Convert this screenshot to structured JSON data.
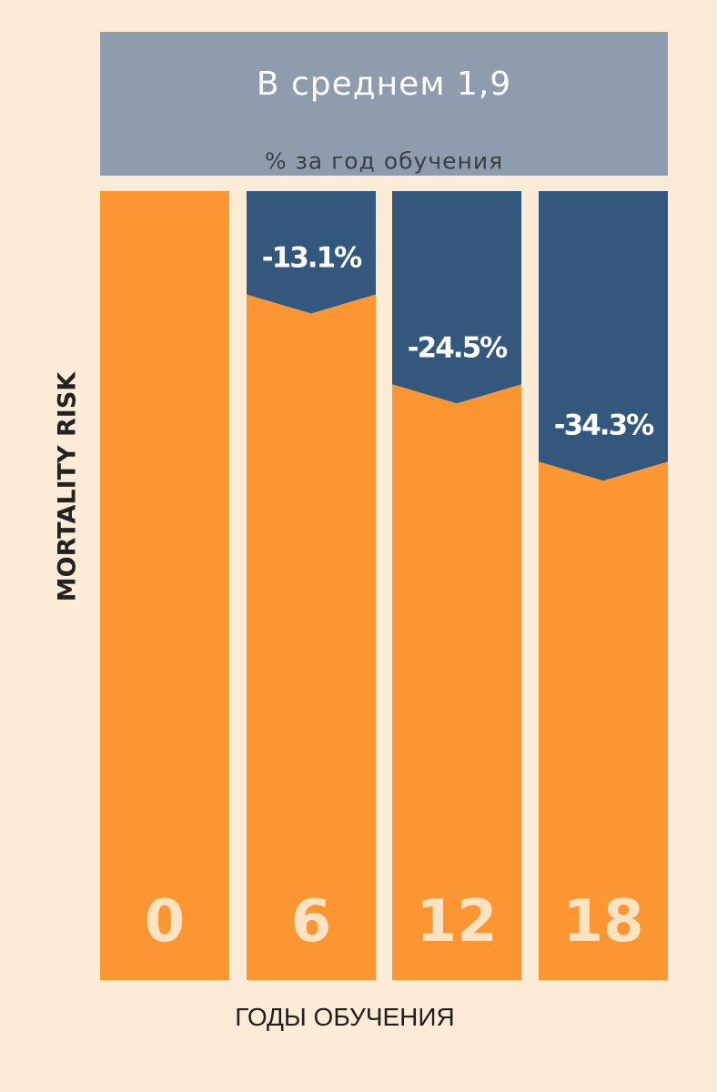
{
  "banner": {
    "title": "В среднем 1,9",
    "subtitle": "% за год обучения"
  },
  "colors": {
    "background": "#fcebd6",
    "banner": "#8f9cae",
    "bar": "#fb9633",
    "reduction": "#34577d",
    "category_text": "#fde3c2"
  },
  "chart_data": {
    "type": "bar",
    "categories": [
      "0",
      "6",
      "12",
      "18"
    ],
    "values": [
      100,
      86.9,
      75.5,
      65.7
    ],
    "reductions": [
      "",
      "-13.1%",
      "-24.5%",
      "-34.3%"
    ],
    "xlabel": "ГОДЫ ОБУЧЕНИЯ",
    "ylabel": "MORTALITY RISK",
    "ylim": [
      0,
      100
    ],
    "legend": "none",
    "grid": false
  }
}
